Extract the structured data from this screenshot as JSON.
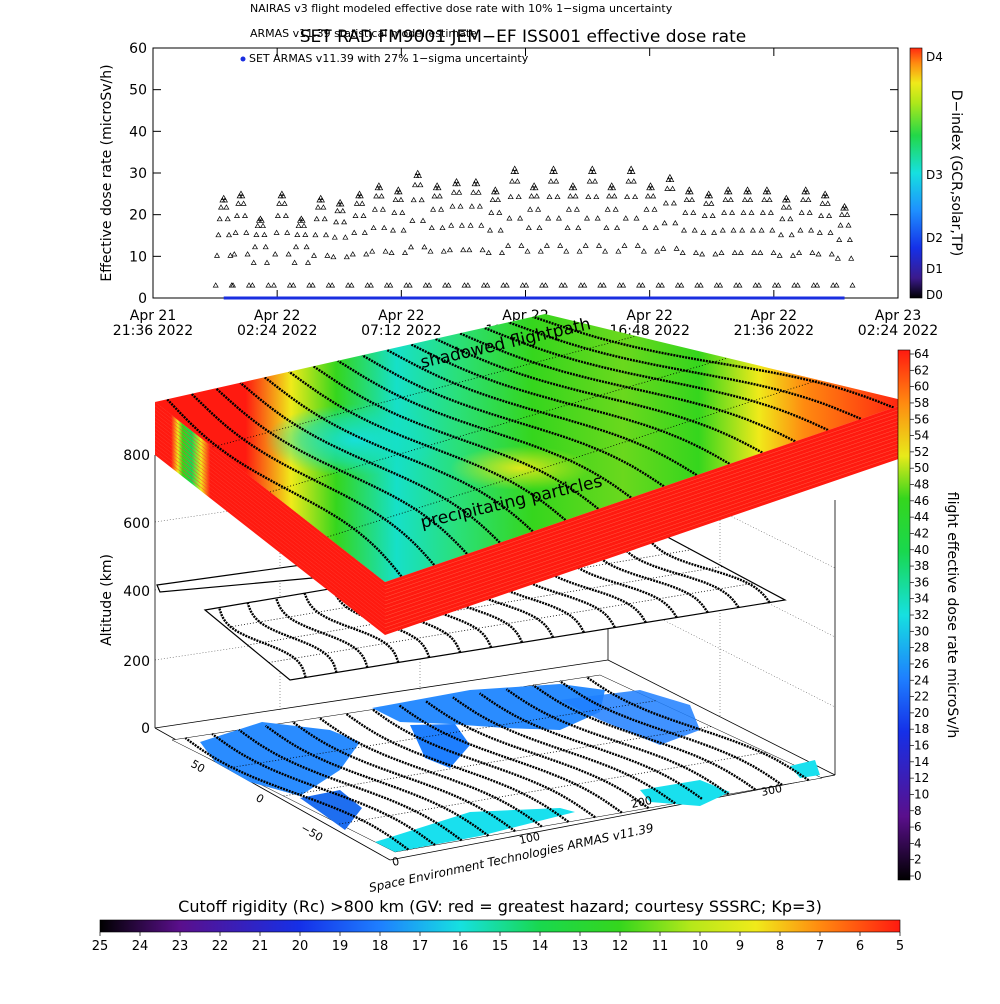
{
  "header": {
    "legend_line_1": "NAIRAS v3 flight modeled effective dose rate with 10% 1−sigma uncertainty",
    "legend_line_2": "ARMAS v11.39 statistical model estimate",
    "legend_line_3": "SET ARMAS v11.39 with 27% 1−sigma uncertainty",
    "title": "SET RAD FM9001 JEM−EF ISS001 effective dose rate"
  },
  "top_chart": {
    "ylabel": "Effective dose rate (microSv/h)",
    "right_label": "D−index (GCR,solar,TP)",
    "right_ticks": [
      "D4",
      "D3",
      "D2",
      "D1",
      "D0"
    ],
    "x_tick_labels": [
      {
        "line1": "Apr 21",
        "line2": "21:36 2022"
      },
      {
        "line1": "Apr 22",
        "line2": "02:24 2022"
      },
      {
        "line1": "Apr 22",
        "line2": "07:12 2022"
      },
      {
        "line1": "Apr 22",
        "line2": "12:00 2022"
      },
      {
        "line1": "Apr 22",
        "line2": "16:48 2022"
      },
      {
        "line1": "Apr 22",
        "line2": "21:36 2022"
      },
      {
        "line1": "Apr 23",
        "line2": "02:24 2022"
      }
    ]
  },
  "three_d": {
    "zlabel": "Altitude (km)",
    "z_ticks": [
      "0",
      "200",
      "400",
      "600",
      "800"
    ],
    "lat_ticks": [
      "50",
      "0",
      "−50"
    ],
    "lon_ticks": [
      "0",
      "100",
      "200",
      "300"
    ],
    "label_shadowed": "shadowed flightpath",
    "label_precip": "precipitating particles",
    "credit": "Space Environment Technologies ARMAS v11.39",
    "colorbar_label": "flight effective dose rate microSv/h",
    "colorbar_ticks": [
      "64",
      "62",
      "60",
      "58",
      "56",
      "54",
      "52",
      "50",
      "48",
      "46",
      "44",
      "42",
      "40",
      "38",
      "36",
      "34",
      "32",
      "30",
      "28",
      "26",
      "24",
      "22",
      "20",
      "18",
      "16",
      "14",
      "12",
      "10",
      "8",
      "6",
      "4",
      "2",
      "0"
    ]
  },
  "bottom_bar": {
    "label": "Cutoff rigidity (Rc) >800 km (GV: red = greatest hazard; courtesy SSSRC; Kp=3)",
    "ticks": [
      "25",
      "24",
      "23",
      "22",
      "21",
      "20",
      "19",
      "18",
      "17",
      "16",
      "15",
      "14",
      "13",
      "12",
      "11",
      "10",
      "9",
      "8",
      "7",
      "6",
      "5"
    ]
  },
  "chart_data": {
    "type": "scatter",
    "title": "SET RAD FM9001 JEM−EF ISS001 effective dose rate",
    "ylabel": "Effective dose rate (microSv/h)",
    "xlabel": "",
    "ylim": [
      0,
      60
    ],
    "y_ticks": [
      0,
      10,
      20,
      30,
      40,
      50,
      60
    ],
    "xlim": [
      "2022-04-21 21:36",
      "2022-04-23 02:24"
    ],
    "x_ticks": [
      "2022-04-21 21:36",
      "2022-04-22 02:24",
      "2022-04-22 07:12",
      "2022-04-22 12:00",
      "2022-04-22 16:48",
      "2022-04-22 21:36",
      "2022-04-23 02:24"
    ],
    "series": [
      {
        "name": "NAIRAS v3 flight modeled effective dose rate with 10% 1−sigma uncertainty",
        "marker": "triangle",
        "color": "#000000",
        "peaks": [
          {
            "t": "2022-04-22 00:20",
            "v": 24
          },
          {
            "t": "2022-04-22 01:00",
            "v": 25
          },
          {
            "t": "2022-04-22 01:45",
            "v": 19
          },
          {
            "t": "2022-04-22 02:35",
            "v": 25
          },
          {
            "t": "2022-04-22 03:20",
            "v": 19
          },
          {
            "t": "2022-04-22 04:05",
            "v": 24
          },
          {
            "t": "2022-04-22 04:50",
            "v": 23
          },
          {
            "t": "2022-04-22 05:35",
            "v": 25
          },
          {
            "t": "2022-04-22 06:20",
            "v": 27
          },
          {
            "t": "2022-04-22 07:05",
            "v": 26
          },
          {
            "t": "2022-04-22 07:50",
            "v": 30
          },
          {
            "t": "2022-04-22 08:35",
            "v": 27
          },
          {
            "t": "2022-04-22 09:20",
            "v": 28
          },
          {
            "t": "2022-04-22 10:05",
            "v": 28
          },
          {
            "t": "2022-04-22 10:50",
            "v": 26
          },
          {
            "t": "2022-04-22 11:35",
            "v": 31
          },
          {
            "t": "2022-04-22 12:20",
            "v": 27
          },
          {
            "t": "2022-04-22 13:05",
            "v": 31
          },
          {
            "t": "2022-04-22 13:50",
            "v": 27
          },
          {
            "t": "2022-04-22 14:35",
            "v": 31
          },
          {
            "t": "2022-04-22 15:20",
            "v": 27
          },
          {
            "t": "2022-04-22 16:05",
            "v": 31
          },
          {
            "t": "2022-04-22 16:50",
            "v": 27
          },
          {
            "t": "2022-04-22 17:35",
            "v": 29
          },
          {
            "t": "2022-04-22 18:20",
            "v": 26
          },
          {
            "t": "2022-04-22 19:05",
            "v": 25
          },
          {
            "t": "2022-04-22 19:50",
            "v": 26
          },
          {
            "t": "2022-04-22 20:35",
            "v": 26
          },
          {
            "t": "2022-04-22 21:20",
            "v": 26
          },
          {
            "t": "2022-04-22 22:05",
            "v": 24
          },
          {
            "t": "2022-04-22 22:50",
            "v": 26
          },
          {
            "t": "2022-04-22 23:35",
            "v": 25
          },
          {
            "t": "2022-04-23 00:20",
            "v": 22
          }
        ],
        "trough": 3
      },
      {
        "name": "SET ARMAS v11.39 with 27% 1−sigma uncertainty",
        "marker": "filled-circle",
        "color": "#1a2ee0",
        "x_range": [
          "2022-04-22 00:20",
          "2022-04-23 00:20"
        ],
        "value": 0
      }
    ]
  }
}
